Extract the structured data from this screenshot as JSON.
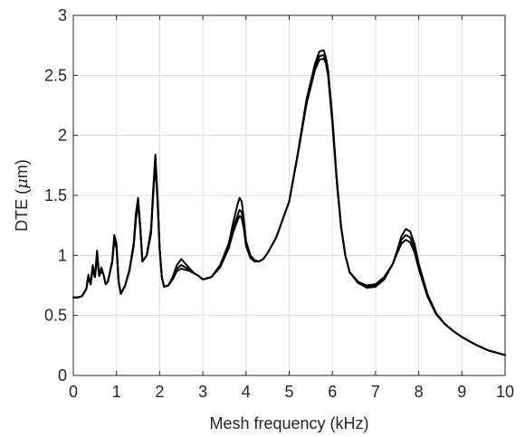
{
  "chart_data": {
    "type": "line",
    "title": "",
    "xlabel": "Mesh frequency (kHz)",
    "ylabel_text": "DTE (",
    "ylabel_mu": "μ",
    "ylabel_unit": "m)",
    "xlim": [
      0,
      10
    ],
    "ylim": [
      0,
      3
    ],
    "xticks": [
      0,
      1,
      2,
      3,
      4,
      5,
      6,
      7,
      8,
      9,
      10
    ],
    "xtick_labels": [
      "0",
      "1",
      "2",
      "3",
      "4",
      "5",
      "6",
      "7",
      "8",
      "9",
      "10"
    ],
    "yticks": [
      0,
      0.5,
      1,
      1.5,
      2,
      2.5,
      3
    ],
    "ytick_labels": [
      "0",
      "0.5",
      "1",
      "1.5",
      "2",
      "2.5",
      "3"
    ],
    "grid": true,
    "line_color": "#000000",
    "series": [
      {
        "x": [
          0,
          0.1,
          0.2,
          0.3,
          0.35,
          0.4,
          0.45,
          0.5,
          0.55,
          0.6,
          0.65,
          0.7,
          0.75,
          0.8,
          0.9,
          0.95,
          1.0,
          1.05,
          1.1,
          1.2,
          1.3,
          1.4,
          1.45,
          1.5,
          1.55,
          1.6,
          1.7,
          1.8,
          1.85,
          1.9,
          1.95,
          2.0,
          2.05,
          2.1,
          2.2,
          2.3,
          2.4,
          2.5,
          2.6,
          2.7,
          2.8,
          2.9,
          3.0,
          3.2,
          3.4,
          3.6,
          3.7,
          3.8,
          3.85,
          3.9,
          3.95,
          4.0,
          4.1,
          4.2,
          4.3,
          4.4,
          4.5,
          4.7,
          5.0,
          5.2,
          5.4,
          5.6,
          5.7,
          5.8,
          5.85,
          5.9,
          6.0,
          6.1,
          6.2,
          6.3,
          6.4,
          6.6,
          6.8,
          7.0,
          7.2,
          7.4,
          7.5,
          7.6,
          7.7,
          7.8,
          7.9,
          8.0,
          8.2,
          8.4,
          8.6,
          8.8,
          9.0,
          9.3,
          9.6,
          10.0
        ],
        "y": [
          0.65,
          0.65,
          0.66,
          0.72,
          0.84,
          0.76,
          0.92,
          0.82,
          1.04,
          0.83,
          0.9,
          0.84,
          0.76,
          0.78,
          0.95,
          1.17,
          1.1,
          0.78,
          0.68,
          0.75,
          0.88,
          1.1,
          1.35,
          1.48,
          1.25,
          0.95,
          1.0,
          1.22,
          1.55,
          1.84,
          1.5,
          1.05,
          0.82,
          0.74,
          0.75,
          0.82,
          0.92,
          0.97,
          0.93,
          0.89,
          0.85,
          0.83,
          0.8,
          0.82,
          0.92,
          1.1,
          1.27,
          1.42,
          1.48,
          1.45,
          1.3,
          1.12,
          1.0,
          0.96,
          0.95,
          0.97,
          1.02,
          1.15,
          1.45,
          1.85,
          2.3,
          2.6,
          2.7,
          2.71,
          2.65,
          2.55,
          2.15,
          1.65,
          1.25,
          1.0,
          0.86,
          0.77,
          0.73,
          0.74,
          0.8,
          0.93,
          1.04,
          1.16,
          1.22,
          1.2,
          1.1,
          0.93,
          0.68,
          0.52,
          0.43,
          0.37,
          0.32,
          0.26,
          0.21,
          0.17
        ]
      },
      {
        "x": [
          0,
          0.1,
          0.2,
          0.3,
          0.35,
          0.4,
          0.45,
          0.5,
          0.55,
          0.6,
          0.65,
          0.7,
          0.75,
          0.8,
          0.9,
          0.95,
          1.0,
          1.05,
          1.1,
          1.2,
          1.3,
          1.4,
          1.45,
          1.5,
          1.55,
          1.6,
          1.7,
          1.8,
          1.85,
          1.9,
          1.95,
          2.0,
          2.05,
          2.1,
          2.2,
          2.3,
          2.4,
          2.5,
          2.6,
          2.7,
          2.8,
          2.9,
          3.0,
          3.2,
          3.4,
          3.6,
          3.7,
          3.8,
          3.85,
          3.9,
          3.95,
          4.0,
          4.1,
          4.2,
          4.3,
          4.4,
          4.5,
          4.7,
          5.0,
          5.2,
          5.4,
          5.6,
          5.7,
          5.8,
          5.85,
          5.9,
          6.0,
          6.1,
          6.2,
          6.3,
          6.4,
          6.6,
          6.8,
          7.0,
          7.2,
          7.4,
          7.5,
          7.6,
          7.7,
          7.8,
          7.9,
          8.0,
          8.2,
          8.4,
          8.6,
          8.8,
          9.0,
          9.3,
          9.6,
          10.0
        ],
        "y": [
          0.65,
          0.65,
          0.66,
          0.72,
          0.83,
          0.76,
          0.9,
          0.82,
          1.0,
          0.83,
          0.88,
          0.84,
          0.76,
          0.78,
          0.95,
          1.15,
          1.08,
          0.78,
          0.68,
          0.75,
          0.88,
          1.1,
          1.33,
          1.46,
          1.24,
          0.95,
          1.0,
          1.2,
          1.53,
          1.8,
          1.48,
          1.05,
          0.82,
          0.74,
          0.75,
          0.81,
          0.89,
          0.92,
          0.9,
          0.88,
          0.85,
          0.83,
          0.8,
          0.82,
          0.91,
          1.08,
          1.22,
          1.33,
          1.38,
          1.36,
          1.25,
          1.1,
          0.99,
          0.95,
          0.95,
          0.97,
          1.02,
          1.15,
          1.45,
          1.85,
          2.28,
          2.57,
          2.66,
          2.67,
          2.62,
          2.52,
          2.12,
          1.63,
          1.24,
          1.0,
          0.86,
          0.77,
          0.74,
          0.75,
          0.81,
          0.93,
          1.03,
          1.13,
          1.17,
          1.15,
          1.06,
          0.91,
          0.67,
          0.52,
          0.43,
          0.37,
          0.32,
          0.26,
          0.21,
          0.17
        ]
      },
      {
        "x": [
          0,
          0.1,
          0.2,
          0.3,
          0.35,
          0.4,
          0.45,
          0.5,
          0.55,
          0.6,
          0.65,
          0.7,
          0.75,
          0.8,
          0.9,
          0.95,
          1.0,
          1.05,
          1.1,
          1.2,
          1.3,
          1.4,
          1.45,
          1.5,
          1.55,
          1.6,
          1.7,
          1.8,
          1.85,
          1.9,
          1.95,
          2.0,
          2.05,
          2.1,
          2.2,
          2.3,
          2.4,
          2.5,
          2.6,
          2.7,
          2.8,
          2.9,
          3.0,
          3.2,
          3.4,
          3.6,
          3.7,
          3.8,
          3.85,
          3.9,
          3.95,
          4.0,
          4.1,
          4.2,
          4.3,
          4.4,
          4.5,
          4.7,
          5.0,
          5.2,
          5.4,
          5.6,
          5.7,
          5.8,
          5.85,
          5.9,
          6.0,
          6.1,
          6.2,
          6.3,
          6.4,
          6.6,
          6.8,
          7.0,
          7.2,
          7.4,
          7.5,
          7.6,
          7.7,
          7.8,
          7.9,
          8.0,
          8.2,
          8.4,
          8.6,
          8.8,
          9.0,
          9.3,
          9.6,
          10.0
        ],
        "y": [
          0.65,
          0.65,
          0.66,
          0.72,
          0.82,
          0.76,
          0.88,
          0.82,
          0.98,
          0.83,
          0.87,
          0.84,
          0.76,
          0.78,
          0.94,
          1.13,
          1.06,
          0.78,
          0.68,
          0.75,
          0.87,
          1.08,
          1.3,
          1.43,
          1.22,
          0.95,
          1.0,
          1.18,
          1.5,
          1.76,
          1.45,
          1.05,
          0.82,
          0.74,
          0.75,
          0.8,
          0.87,
          0.89,
          0.88,
          0.87,
          0.85,
          0.83,
          0.8,
          0.82,
          0.9,
          1.06,
          1.19,
          1.29,
          1.33,
          1.31,
          1.22,
          1.08,
          0.98,
          0.95,
          0.95,
          0.97,
          1.02,
          1.15,
          1.45,
          1.84,
          2.26,
          2.55,
          2.63,
          2.64,
          2.6,
          2.5,
          2.1,
          1.62,
          1.24,
          1.0,
          0.86,
          0.78,
          0.75,
          0.76,
          0.82,
          0.93,
          1.02,
          1.1,
          1.13,
          1.11,
          1.03,
          0.89,
          0.66,
          0.51,
          0.43,
          0.37,
          0.32,
          0.26,
          0.21,
          0.17
        ]
      }
    ]
  }
}
